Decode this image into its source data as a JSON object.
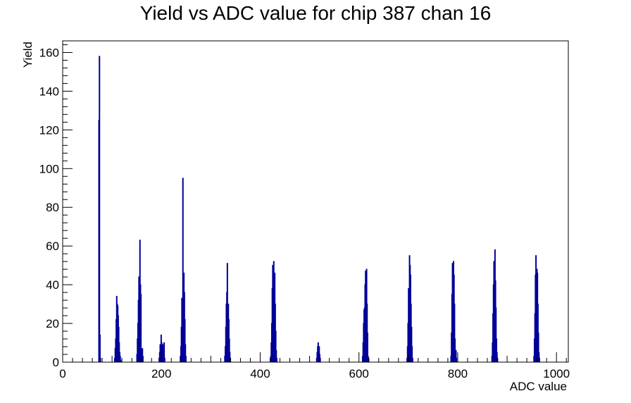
{
  "chart_data": {
    "type": "bar",
    "title": "Yield vs ADC value for chip 387 chan 16",
    "xlabel": "ADC value",
    "ylabel": "Yield",
    "xlim": [
      0,
      1024
    ],
    "ylim": [
      0,
      166
    ],
    "x_ticks": [
      0,
      200,
      400,
      600,
      800,
      1000
    ],
    "y_ticks": [
      0,
      20,
      40,
      60,
      80,
      100,
      120,
      140,
      160
    ],
    "grid": false,
    "legend": "none",
    "series": [
      {
        "color": "#000099",
        "bins": [
          [
            73,
            125
          ],
          [
            74,
            158
          ],
          [
            75,
            14
          ],
          [
            76,
            2
          ],
          [
            105,
            2
          ],
          [
            106,
            7
          ],
          [
            107,
            12
          ],
          [
            108,
            22
          ],
          [
            109,
            34
          ],
          [
            110,
            30
          ],
          [
            111,
            29
          ],
          [
            112,
            24
          ],
          [
            113,
            18
          ],
          [
            114,
            10
          ],
          [
            115,
            5
          ],
          [
            116,
            3
          ],
          [
            117,
            1
          ],
          [
            150,
            4
          ],
          [
            151,
            12
          ],
          [
            152,
            20
          ],
          [
            153,
            32
          ],
          [
            154,
            44
          ],
          [
            155,
            38
          ],
          [
            156,
            63
          ],
          [
            157,
            40
          ],
          [
            158,
            35
          ],
          [
            159,
            6
          ],
          [
            160,
            5
          ],
          [
            161,
            7
          ],
          [
            162,
            3
          ],
          [
            195,
            2
          ],
          [
            196,
            5
          ],
          [
            197,
            9
          ],
          [
            198,
            8
          ],
          [
            199,
            14
          ],
          [
            200,
            10
          ],
          [
            201,
            6
          ],
          [
            202,
            9
          ],
          [
            203,
            4
          ],
          [
            204,
            7
          ],
          [
            205,
            10
          ],
          [
            206,
            2
          ],
          [
            238,
            3
          ],
          [
            239,
            8
          ],
          [
            240,
            18
          ],
          [
            241,
            33
          ],
          [
            242,
            30
          ],
          [
            243,
            95
          ],
          [
            244,
            40
          ],
          [
            245,
            46
          ],
          [
            246,
            36
          ],
          [
            247,
            22
          ],
          [
            248,
            9
          ],
          [
            249,
            3
          ],
          [
            328,
            3
          ],
          [
            329,
            8
          ],
          [
            330,
            18
          ],
          [
            331,
            30
          ],
          [
            332,
            36
          ],
          [
            333,
            51
          ],
          [
            334,
            28
          ],
          [
            335,
            30
          ],
          [
            336,
            22
          ],
          [
            337,
            12
          ],
          [
            338,
            5
          ],
          [
            339,
            2
          ],
          [
            421,
            3
          ],
          [
            422,
            10
          ],
          [
            423,
            20
          ],
          [
            424,
            38
          ],
          [
            425,
            50
          ],
          [
            426,
            45
          ],
          [
            427,
            52
          ],
          [
            428,
            40
          ],
          [
            429,
            46
          ],
          [
            430,
            30
          ],
          [
            431,
            16
          ],
          [
            432,
            6
          ],
          [
            433,
            2
          ],
          [
            514,
            2
          ],
          [
            515,
            5
          ],
          [
            516,
            8
          ],
          [
            517,
            10
          ],
          [
            518,
            6
          ],
          [
            519,
            8
          ],
          [
            520,
            4
          ],
          [
            521,
            2
          ],
          [
            607,
            3
          ],
          [
            608,
            10
          ],
          [
            609,
            20
          ],
          [
            610,
            27
          ],
          [
            611,
            28
          ],
          [
            612,
            40
          ],
          [
            613,
            47
          ],
          [
            614,
            46
          ],
          [
            615,
            48
          ],
          [
            616,
            30
          ],
          [
            617,
            15
          ],
          [
            618,
            3
          ],
          [
            619,
            2
          ],
          [
            697,
            2
          ],
          [
            698,
            8
          ],
          [
            699,
            20
          ],
          [
            700,
            38
          ],
          [
            701,
            30
          ],
          [
            702,
            55
          ],
          [
            703,
            50
          ],
          [
            704,
            45
          ],
          [
            705,
            30
          ],
          [
            706,
            18
          ],
          [
            707,
            8
          ],
          [
            708,
            2
          ],
          [
            786,
            3
          ],
          [
            787,
            15
          ],
          [
            788,
            35
          ],
          [
            789,
            51
          ],
          [
            790,
            40
          ],
          [
            791,
            52
          ],
          [
            792,
            45
          ],
          [
            793,
            30
          ],
          [
            794,
            12
          ],
          [
            795,
            5
          ],
          [
            796,
            6
          ],
          [
            797,
            2
          ],
          [
            869,
            3
          ],
          [
            870,
            10
          ],
          [
            871,
            25
          ],
          [
            872,
            40
          ],
          [
            873,
            52
          ],
          [
            874,
            43
          ],
          [
            875,
            58
          ],
          [
            876,
            42
          ],
          [
            877,
            28
          ],
          [
            878,
            12
          ],
          [
            879,
            5
          ],
          [
            880,
            2
          ],
          [
            954,
            3
          ],
          [
            955,
            12
          ],
          [
            956,
            25
          ],
          [
            957,
            45
          ],
          [
            958,
            55
          ],
          [
            959,
            43
          ],
          [
            960,
            48
          ],
          [
            961,
            46
          ],
          [
            962,
            30
          ],
          [
            963,
            15
          ],
          [
            964,
            5
          ],
          [
            965,
            2
          ]
        ]
      }
    ]
  }
}
